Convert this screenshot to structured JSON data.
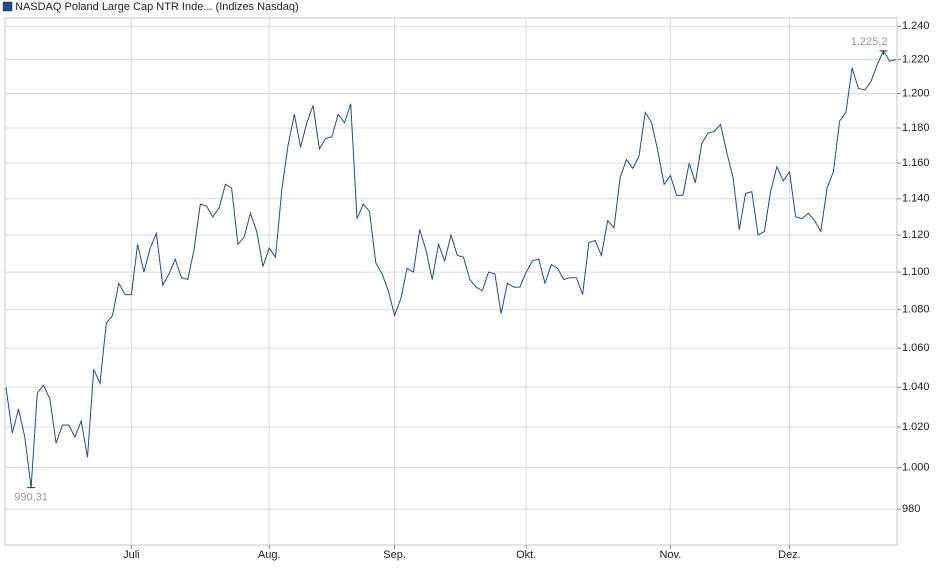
{
  "chart_data": {
    "type": "line",
    "log_scale": true,
    "grid": true,
    "ylim": [
      963,
      1245
    ],
    "yticks": [
      {
        "value": 1240,
        "label": "1.240"
      },
      {
        "value": 1220,
        "label": "1.220"
      },
      {
        "value": 1200,
        "label": "1.200"
      },
      {
        "value": 1180,
        "label": "1.180"
      },
      {
        "value": 1160,
        "label": "1.160"
      },
      {
        "value": 1140,
        "label": "1.140"
      },
      {
        "value": 1120,
        "label": "1.120"
      },
      {
        "value": 1100,
        "label": "1.100"
      },
      {
        "value": 1080,
        "label": "1.080"
      },
      {
        "value": 1060,
        "label": "1.060"
      },
      {
        "value": 1040,
        "label": "1.040"
      },
      {
        "value": 1020,
        "label": "1.020"
      },
      {
        "value": 1000,
        "label": "1.000"
      },
      980
    ],
    "categories": [
      null,
      null,
      null,
      null,
      null,
      null,
      null,
      null,
      null,
      null,
      null,
      null,
      null,
      null,
      null,
      null,
      null,
      null,
      null,
      null,
      "Juli",
      null,
      null,
      null,
      null,
      null,
      null,
      null,
      null,
      null,
      null,
      null,
      null,
      null,
      null,
      null,
      null,
      null,
      null,
      null,
      null,
      null,
      "Aug.",
      null,
      null,
      null,
      null,
      null,
      null,
      null,
      null,
      null,
      null,
      null,
      null,
      null,
      null,
      null,
      null,
      null,
      null,
      null,
      "Sep.",
      null,
      null,
      null,
      null,
      null,
      null,
      null,
      null,
      null,
      null,
      null,
      null,
      null,
      null,
      null,
      null,
      null,
      null,
      null,
      null,
      "Okt.",
      null,
      null,
      null,
      null,
      null,
      null,
      null,
      null,
      null,
      null,
      null,
      null,
      null,
      null,
      null,
      null,
      null,
      null,
      null,
      null,
      null,
      null,
      "Nov.",
      null,
      null,
      null,
      null,
      null,
      null,
      null,
      null,
      null,
      null,
      null,
      null,
      null,
      null,
      null,
      null,
      null,
      null,
      "Dez.",
      null,
      null,
      null,
      null,
      null,
      null,
      null,
      null,
      null,
      null,
      null,
      null,
      null,
      null,
      null,
      null,
      null
    ],
    "series": [
      {
        "name": "NASDAQ Poland Large Cap NTR Inde... (Indizes Nasdaq)",
        "color": "#1c4f91",
        "values": [
          1040,
          1017,
          1029,
          1015,
          990.31,
          1037,
          1041,
          1034,
          1012,
          1021,
          1021,
          1015,
          1023,
          1005,
          1049,
          1042,
          1073,
          1077,
          1094,
          1088,
          1088,
          1115,
          1100,
          1113,
          1121,
          1093,
          1099,
          1107,
          1097,
          1096,
          1112,
          1137,
          1136,
          1130,
          1135,
          1148,
          1146,
          1115,
          1119,
          1132,
          1122,
          1103,
          1113,
          1108,
          1145,
          1170,
          1188,
          1169,
          1183,
          1193,
          1168,
          1174,
          1175,
          1188,
          1183,
          1194,
          1129,
          1137,
          1133,
          1105,
          1099,
          1090,
          1077,
          1086,
          1102,
          1100,
          1123,
          1112,
          1096,
          1115,
          1106,
          1120,
          1109,
          1108,
          1096,
          1092,
          1090,
          1100,
          1099,
          1078,
          1094,
          1092,
          1092,
          1100,
          1106,
          1107,
          1094,
          1104,
          1102,
          1096,
          1097,
          1097,
          1088,
          1116,
          1117,
          1109,
          1128,
          1124,
          1152,
          1162,
          1157,
          1164,
          1189,
          1183,
          1167,
          1148,
          1153,
          1142,
          1142,
          1160,
          1149,
          1171,
          1177,
          1178,
          1182,
          1166,
          1152,
          1123,
          1143,
          1144,
          1120,
          1122,
          1144,
          1158,
          1150,
          1155,
          1130,
          1129,
          1132,
          1128,
          1122,
          1146,
          1155,
          1184,
          1189,
          1215,
          1203,
          1202,
          1207,
          1217,
          1225.2,
          1219,
          1220
        ],
        "value_labels": [
          null,
          null,
          null,
          null,
          "990,31",
          null,
          null,
          null,
          null,
          null,
          null,
          null,
          null,
          null,
          null,
          null,
          null,
          null,
          null,
          null,
          null,
          null,
          null,
          null,
          null,
          null,
          null,
          null,
          null,
          null,
          null,
          null,
          null,
          null,
          null,
          null,
          null,
          null,
          null,
          null,
          null,
          null,
          null,
          null,
          null,
          null,
          null,
          null,
          null,
          null,
          null,
          null,
          null,
          null,
          null,
          null,
          null,
          null,
          null,
          null,
          null,
          null,
          null,
          null,
          null,
          null,
          null,
          null,
          null,
          null,
          null,
          null,
          null,
          null,
          null,
          null,
          null,
          null,
          null,
          null,
          null,
          null,
          null,
          null,
          null,
          null,
          null,
          null,
          null,
          null,
          null,
          null,
          null,
          null,
          null,
          null,
          null,
          null,
          null,
          null,
          null,
          null,
          null,
          null,
          null,
          null,
          null,
          null,
          null,
          null,
          null,
          null,
          null,
          null,
          null,
          null,
          null,
          null,
          null,
          null,
          null,
          null,
          null,
          null,
          null,
          null,
          null,
          null,
          null,
          null,
          null,
          null,
          null,
          null,
          null,
          null,
          null,
          null,
          null,
          null,
          "1.225,2",
          null,
          null
        ]
      }
    ]
  }
}
